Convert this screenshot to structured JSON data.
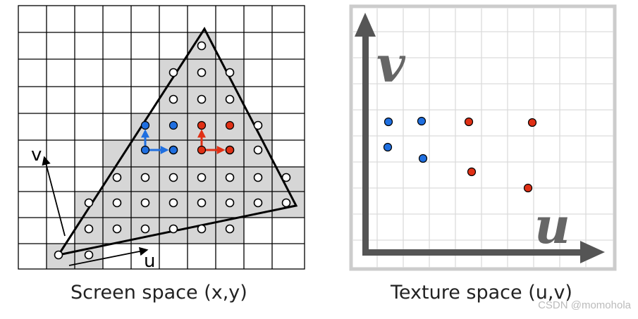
{
  "screen_caption": "Screen space (x,y)",
  "texture_caption": "Texture space (u,v)",
  "screen_axis_v": "v",
  "screen_axis_u": "u",
  "texture_axis_v": "v",
  "texture_axis_u": "u",
  "watermark": "CSDN @momohola",
  "colors": {
    "grid_line": "#000000",
    "covered_cell": "#d6d6d6",
    "triangle": "#000000",
    "blue": "#1f6fe0",
    "red": "#e03015",
    "texture_grid": "#d9d9d9",
    "texture_frame": "#cccccc",
    "texture_axis": "#555555"
  }
}
